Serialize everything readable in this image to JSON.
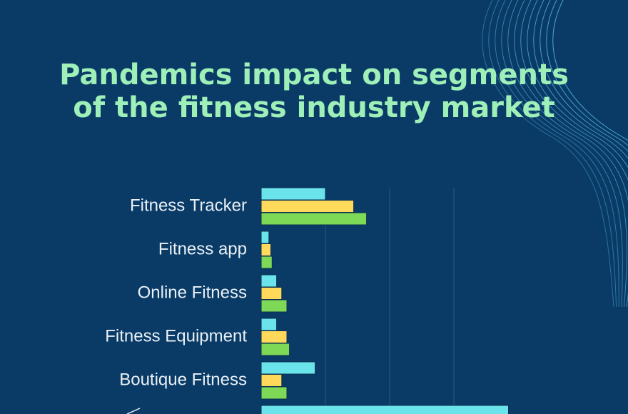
{
  "title": {
    "line1": "Pandemics impact on segments",
    "line2": "of the fitness industry market"
  },
  "colors": {
    "background": "#0a3b66",
    "title": "#9ef0b8",
    "series": [
      "#6ae4ea",
      "#ffd95a",
      "#7ed957"
    ],
    "grid": "#2b5a82",
    "deco_lines": "#4fb6e0"
  },
  "chart_data": {
    "type": "bar",
    "orientation": "horizontal",
    "categories": [
      "Fitness Tracker",
      "Fitness app",
      "Online Fitness",
      "Fitness Equipment",
      "Boutique Fitness",
      ""
    ],
    "series": [
      {
        "values": [
          10,
          1.2,
          2.4,
          2.4,
          8.4,
          38.5
        ]
      },
      {
        "values": [
          14.4,
          1.5,
          3.2,
          4.0,
          3.2,
          null
        ]
      },
      {
        "values": [
          16.4,
          1.7,
          4.0,
          4.4,
          4.0,
          null
        ]
      }
    ],
    "xlim": [
      0,
      40
    ],
    "grid": true,
    "legend": "none"
  }
}
